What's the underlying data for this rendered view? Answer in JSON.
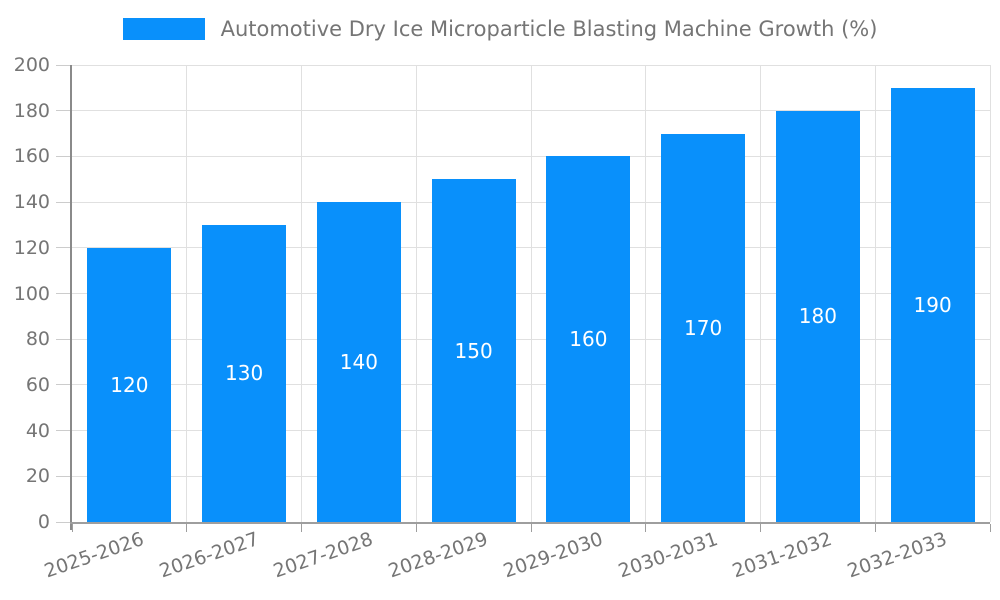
{
  "chart_data": {
    "type": "bar",
    "title": "Automotive Dry Ice Microparticle Blasting Machine Growth (%)",
    "categories": [
      "2025-2026",
      "2026-2027",
      "2027-2028",
      "2028-2029",
      "2029-2030",
      "2030-2031",
      "2031-2032",
      "2032-2033"
    ],
    "values": [
      120,
      130,
      140,
      150,
      160,
      170,
      180,
      190
    ],
    "xlabel": "",
    "ylabel": "",
    "ylim": [
      0,
      200
    ],
    "ytick_step": 20,
    "grid": true,
    "legend_position": "top-center",
    "bar_color": "#0990fb",
    "bar_label_color": "#ffffff",
    "grid_color": "#e0e0e0",
    "axis_color": "#9e9e9e",
    "tick_text_color": "#757575"
  }
}
